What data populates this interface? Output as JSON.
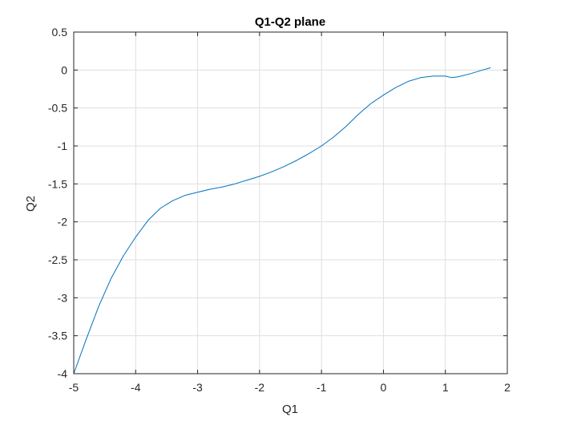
{
  "chart_data": {
    "type": "line",
    "title": "Q1-Q2 plane",
    "xlabel": "Q1",
    "ylabel": "Q2",
    "xlim": [
      -5,
      2
    ],
    "ylim": [
      -4,
      0.5
    ],
    "xticks": [
      -5,
      -4,
      -3,
      -2,
      -1,
      0,
      1,
      2
    ],
    "yticks": [
      -4,
      -3.5,
      -3,
      -2.5,
      -2,
      -1.5,
      -1,
      -0.5,
      0,
      0.5
    ],
    "xtick_labels": [
      "-5",
      "-4",
      "-3",
      "-2",
      "-1",
      "0",
      "1",
      "2"
    ],
    "ytick_labels": [
      "-4",
      "-3.5",
      "-3",
      "-2.5",
      "-2",
      "-1.5",
      "-1",
      "-0.5",
      "0",
      "0.5"
    ],
    "grid": true,
    "line_color": "#0072BD",
    "series": [
      {
        "x": [
          -5.0,
          -4.8,
          -4.6,
          -4.4,
          -4.2,
          -4.0,
          -3.8,
          -3.6,
          -3.4,
          -3.2,
          -3.0,
          -2.8,
          -2.6,
          -2.4,
          -2.2,
          -2.0,
          -1.8,
          -1.6,
          -1.4,
          -1.2,
          -1.0,
          -0.8,
          -0.6,
          -0.4,
          -0.2,
          0.0,
          0.2,
          0.4,
          0.6,
          0.8,
          1.0,
          1.1,
          1.2,
          1.4,
          1.6,
          1.73
        ],
        "y": [
          -4.0,
          -3.55,
          -3.12,
          -2.75,
          -2.45,
          -2.2,
          -1.98,
          -1.82,
          -1.72,
          -1.65,
          -1.61,
          -1.57,
          -1.54,
          -1.5,
          -1.45,
          -1.4,
          -1.34,
          -1.27,
          -1.19,
          -1.1,
          -1.0,
          -0.88,
          -0.74,
          -0.58,
          -0.44,
          -0.33,
          -0.23,
          -0.15,
          -0.1,
          -0.08,
          -0.08,
          -0.1,
          -0.09,
          -0.05,
          0.0,
          0.03
        ]
      }
    ]
  }
}
